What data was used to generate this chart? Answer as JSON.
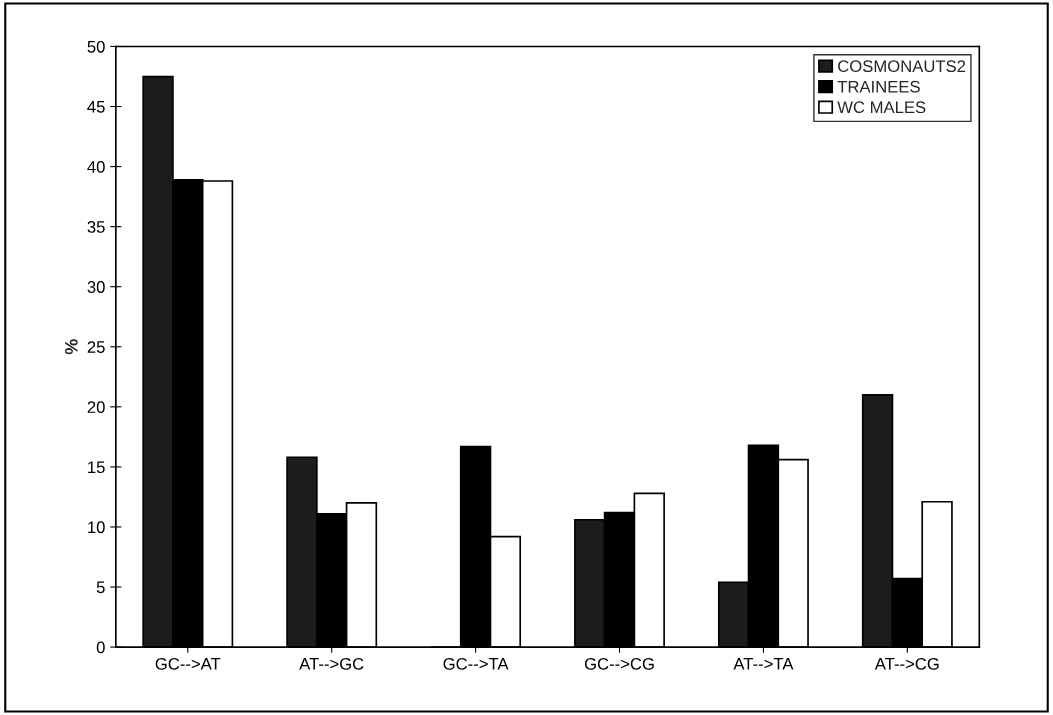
{
  "chart_data": {
    "type": "bar",
    "ylabel": "%",
    "categories": [
      "GC-->AT",
      "AT-->GC",
      "GC-->TA",
      "GC-->CG",
      "AT-->TA",
      "AT-->CG"
    ],
    "series": [
      {
        "name": "COSMONAUTS2",
        "color": "#1c1c1c",
        "values": [
          47.5,
          15.8,
          0,
          10.6,
          5.4,
          21.0
        ]
      },
      {
        "name": "TRAINEES",
        "color": "#000000",
        "values": [
          38.9,
          11.1,
          16.7,
          11.2,
          16.8,
          5.7
        ]
      },
      {
        "name": "WC MALES",
        "color": "#ffffff",
        "values": [
          38.8,
          12.0,
          9.2,
          12.8,
          15.6,
          12.1
        ]
      }
    ],
    "ylim": [
      0,
      50
    ],
    "yticks": [
      0,
      5,
      10,
      15,
      20,
      25,
      30,
      35,
      40,
      45,
      50
    ],
    "grid": false,
    "legend": "top right"
  }
}
